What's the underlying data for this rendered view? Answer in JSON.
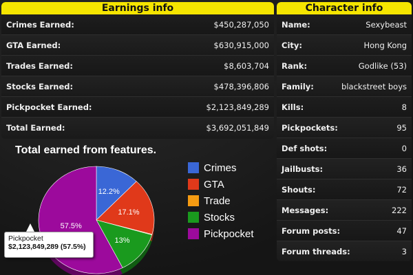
{
  "earnings": {
    "title": "Earnings info",
    "rows": [
      {
        "label": "Crimes Earned:",
        "value": "$450,287,050"
      },
      {
        "label": "GTA Earned:",
        "value": "$630,915,000"
      },
      {
        "label": "Trades Earned:",
        "value": "$8,603,704"
      },
      {
        "label": "Stocks Earned:",
        "value": "$478,396,806"
      },
      {
        "label": "Pickpocket Earned:",
        "value": "$2,123,849,289"
      },
      {
        "label": "Total Earned:",
        "value": "$3,692,051,849"
      }
    ]
  },
  "character": {
    "title": "Character info",
    "rows": [
      {
        "label": "Name:",
        "value": "Sexybeast"
      },
      {
        "label": "City:",
        "value": "Hong Kong"
      },
      {
        "label": "Rank:",
        "value": "Godlike (53)"
      },
      {
        "label": "Family:",
        "value": "blackstreet boys"
      },
      {
        "label": "Kills:",
        "value": "8"
      },
      {
        "label": "Pickpockets:",
        "value": "95"
      },
      {
        "label": "Def shots:",
        "value": "0"
      },
      {
        "label": "Jailbusts:",
        "value": "36"
      },
      {
        "label": "Shouts:",
        "value": "72"
      },
      {
        "label": "Messages:",
        "value": "222"
      },
      {
        "label": "Forum posts:",
        "value": "47"
      },
      {
        "label": "Forum threads:",
        "value": "3"
      }
    ]
  },
  "chart_data": {
    "type": "pie",
    "title": "Total earned from features.",
    "categories": [
      "Crimes",
      "GTA",
      "Trade",
      "Stocks",
      "Pickpocket"
    ],
    "values": [
      12.2,
      17.1,
      0.2,
      13,
      57.5
    ],
    "labels": [
      "12.2%",
      "17.1%",
      "",
      "13%",
      "57.5%"
    ],
    "colors": [
      "#3a67d6",
      "#e0391a",
      "#f59b12",
      "#1a9a1e",
      "#9c0a9c"
    ],
    "legend": "right",
    "tooltip": {
      "title": "Pickpocket",
      "value": "$2,123,849,289 (57.5%)"
    }
  }
}
